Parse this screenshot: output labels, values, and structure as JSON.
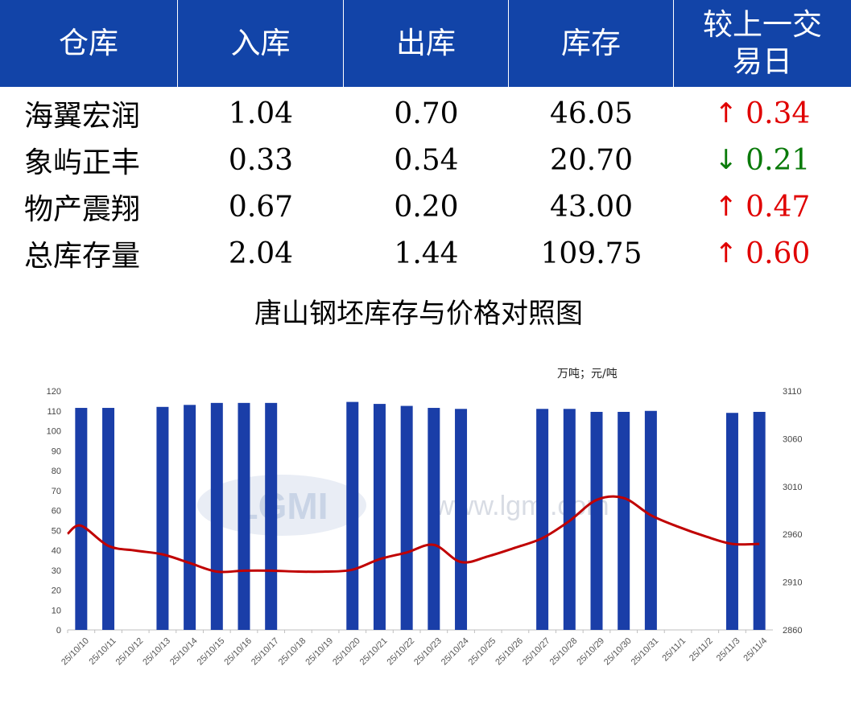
{
  "table": {
    "headers": [
      "仓库",
      "入库",
      "出库",
      "库存",
      "较上一交易日"
    ],
    "header_last_lines": [
      "较上一交",
      "易日"
    ],
    "rows": [
      {
        "name": "海翼宏润",
        "in": "1.04",
        "out": "0.70",
        "stock": "46.05",
        "dir": "up",
        "change": "0.34"
      },
      {
        "name": "象屿正丰",
        "in": "0.33",
        "out": "0.54",
        "stock": "20.70",
        "dir": "down",
        "change": "0.21"
      },
      {
        "name": "物产震翔",
        "in": "0.67",
        "out": "0.20",
        "stock": "43.00",
        "dir": "up",
        "change": "0.47"
      },
      {
        "name": "总库存量",
        "in": "2.04",
        "out": "1.44",
        "stock": "109.75",
        "dir": "up",
        "change": "0.60"
      }
    ],
    "colors": {
      "header_bg": "#1244a8",
      "up": "#e00000",
      "down": "#0a7a0a"
    }
  },
  "chart_data": {
    "type": "bar+line",
    "title": "唐山钢坯库存与价格对照图",
    "unit_label": "万吨；元/吨",
    "watermark": "www.lgmi.com",
    "watermark_logo": "LGMI",
    "categories": [
      "25/10/10",
      "25/10/11",
      "25/10/12",
      "25/10/13",
      "25/10/14",
      "25/10/15",
      "25/10/16",
      "25/10/17",
      "25/10/18",
      "25/10/19",
      "25/10/20",
      "25/10/21",
      "25/10/22",
      "25/10/23",
      "25/10/24",
      "25/10/25",
      "25/10/26",
      "25/10/27",
      "25/10/28",
      "25/10/29",
      "25/10/30",
      "25/10/31",
      "25/11/1",
      "25/11/2",
      "25/11/3",
      "25/11/4"
    ],
    "series": [
      {
        "type": "bar",
        "axis": "left",
        "color": "#1a3ea8",
        "values": [
          111.5,
          111.5,
          null,
          112,
          113,
          114,
          114,
          114,
          null,
          null,
          114.5,
          113.5,
          112.5,
          111.5,
          111,
          null,
          null,
          111,
          111,
          109.5,
          109.5,
          110,
          null,
          null,
          109,
          109.5
        ]
      },
      {
        "type": "line",
        "axis": "right",
        "color": "#c00000",
        "values": [
          2969,
          2948,
          2943,
          2939,
          2930,
          2921,
          2922,
          2922,
          2921,
          2921,
          2923,
          2934,
          2941,
          2949,
          2931,
          2937,
          2946,
          2956,
          2974,
          2996,
          2998,
          2980,
          2968,
          2958,
          2950,
          2950
        ]
      }
    ],
    "y_left": {
      "min": 0,
      "max": 120,
      "ticks": [
        0,
        10,
        20,
        30,
        40,
        50,
        60,
        70,
        80,
        90,
        100,
        110,
        120
      ]
    },
    "y_right": {
      "min": 2860,
      "max": 3110,
      "ticks": [
        2860,
        2910,
        2960,
        3010,
        3060,
        3110
      ]
    },
    "grid": false,
    "legend": "none"
  }
}
